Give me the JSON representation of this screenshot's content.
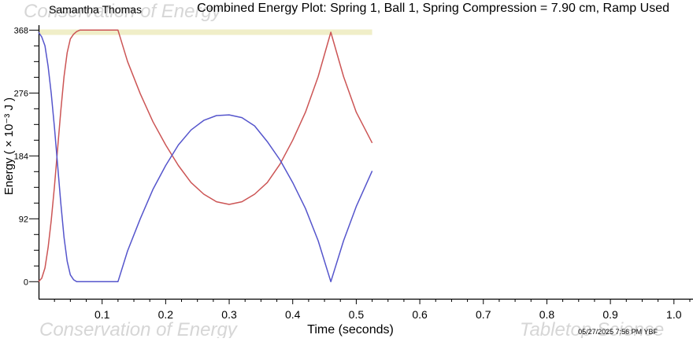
{
  "header": {
    "student_name": "Samantha Thomas",
    "plot_title": "Combined Energy Plot: Spring 1, Ball 1, Spring Compression = 7.90 cm, Ramp Used"
  },
  "watermarks": {
    "top_left": "Conservation of Energy",
    "bottom_left": "Conservation of Energy",
    "bottom_right": "Tabletop Science"
  },
  "footer": {
    "timestamp": "05/27/2025   7:56 PM  YBF"
  },
  "chart_data": {
    "type": "line",
    "xlabel": "Time (seconds)",
    "ylabel": "Energy ( × 10⁻³ J )",
    "xlim": [
      0,
      1.03
    ],
    "ylim": [
      -25,
      373
    ],
    "xticks": [
      "0.1",
      "0.2",
      "0.3",
      "0.4",
      "0.5",
      "0.6",
      "0.7",
      "0.8",
      "0.9",
      "1.0"
    ],
    "xtick_values": [
      0.1,
      0.2,
      0.3,
      0.4,
      0.5,
      0.6,
      0.7,
      0.8,
      0.9,
      1.0
    ],
    "yticks": [
      "0",
      "92",
      "184",
      "276",
      "368"
    ],
    "ytick_values": [
      0,
      92,
      184,
      276,
      368
    ],
    "grid": false,
    "total_energy_band": {
      "x": [
        0,
        0.525
      ],
      "y": 365,
      "color": "#f0eec8"
    },
    "series": [
      {
        "color": "#cc5555",
        "x": [
          0,
          0.005,
          0.01,
          0.015,
          0.02,
          0.025,
          0.03,
          0.035,
          0.04,
          0.045,
          0.05,
          0.055,
          0.06,
          0.065,
          0.075,
          0.09,
          0.1,
          0.11,
          0.125,
          0.14,
          0.16,
          0.18,
          0.2,
          0.22,
          0.24,
          0.26,
          0.28,
          0.3,
          0.32,
          0.34,
          0.36,
          0.38,
          0.4,
          0.42,
          0.44,
          0.46,
          0.48,
          0.5,
          0.525
        ],
        "y": [
          0,
          5,
          20,
          50,
          90,
          140,
          195,
          250,
          300,
          335,
          355,
          362,
          366,
          368,
          368,
          368,
          368,
          368,
          368,
          322,
          275,
          234,
          200,
          170,
          145,
          128,
          117,
          113,
          117,
          128,
          145,
          172,
          207,
          248,
          300,
          365,
          300,
          248,
          203
        ]
      },
      {
        "color": "#5555cc",
        "x": [
          0,
          0.005,
          0.01,
          0.015,
          0.02,
          0.025,
          0.03,
          0.035,
          0.04,
          0.045,
          0.05,
          0.055,
          0.06,
          0.065,
          0.075,
          0.09,
          0.1,
          0.11,
          0.125,
          0.14,
          0.16,
          0.18,
          0.2,
          0.22,
          0.24,
          0.26,
          0.28,
          0.3,
          0.32,
          0.34,
          0.36,
          0.38,
          0.4,
          0.42,
          0.44,
          0.46,
          0.48,
          0.5,
          0.525
        ],
        "y": [
          365,
          358,
          345,
          315,
          275,
          225,
          170,
          115,
          65,
          30,
          10,
          3,
          0,
          0,
          0,
          0,
          0,
          0,
          0,
          45,
          92,
          135,
          170,
          200,
          222,
          236,
          243,
          244,
          240,
          228,
          205,
          178,
          145,
          107,
          60,
          0,
          60,
          110,
          162
        ]
      }
    ]
  }
}
